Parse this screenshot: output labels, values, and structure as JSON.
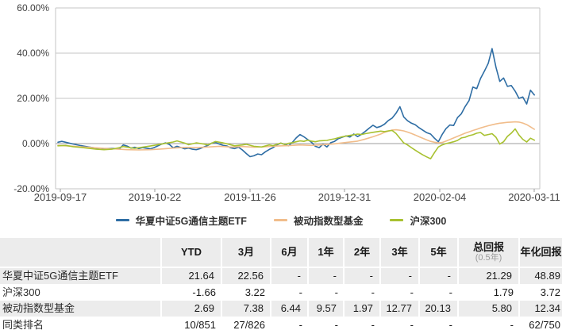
{
  "chart": {
    "y_axis_labels": [
      "60.00%",
      "40.00%",
      "20.00%",
      "0.00%",
      "-20.00%"
    ],
    "x_axis_labels": [
      "2019-09-17",
      "2019-10-22",
      "2019-11-26",
      "2019-12-31",
      "2020-02-04",
      "2020-03-11"
    ]
  },
  "chart_data": {
    "type": "line",
    "title": "",
    "xlabel": "",
    "ylabel": "",
    "y_unit": "%",
    "ylim": [
      -20,
      60
    ],
    "y_ticks": [
      60,
      40,
      20,
      0,
      -20
    ],
    "x_ticks": [
      "2019-09-17",
      "2019-10-22",
      "2019-11-26",
      "2019-12-31",
      "2020-02-04",
      "2020-03-11"
    ],
    "x_tick_day_interval": 25,
    "grid": true,
    "legend_position": "bottom",
    "colors": {
      "grid": "#c6c6c6",
      "zero_line": "#9e9e9e",
      "axis_text": "#404040"
    },
    "series": [
      {
        "name": "华夏中证5G通信主题ETF",
        "color": "#2e6da4",
        "points": [
          [
            0,
            0.6
          ],
          [
            1,
            1.0
          ],
          [
            2,
            0.6
          ],
          [
            4,
            -0.2
          ],
          [
            6,
            -0.9
          ],
          [
            8,
            -1.5
          ],
          [
            10,
            -2.0
          ],
          [
            12,
            -2.2
          ],
          [
            14,
            -2.1
          ],
          [
            16,
            -2.3
          ],
          [
            17,
            -0.6
          ],
          [
            18,
            -1.1
          ],
          [
            19,
            -2.0
          ],
          [
            20,
            -1.6
          ],
          [
            21,
            -2.2
          ],
          [
            22,
            -1.8
          ],
          [
            24,
            -2.3
          ],
          [
            25,
            -1.8
          ],
          [
            27,
            -0.2
          ],
          [
            28,
            0.3
          ],
          [
            29,
            -0.4
          ],
          [
            30,
            -1.9
          ],
          [
            31,
            -1.2
          ],
          [
            33,
            -2.3
          ],
          [
            34,
            -2.0
          ],
          [
            35,
            -2.5
          ],
          [
            36,
            -2.7
          ],
          [
            37,
            -2.2
          ],
          [
            38,
            -1.5
          ],
          [
            39,
            -0.8
          ],
          [
            40,
            0.2
          ],
          [
            41,
            0.5
          ],
          [
            42,
            -0.2
          ],
          [
            43,
            -0.8
          ],
          [
            44,
            -1.1
          ],
          [
            45,
            -1.9
          ],
          [
            46,
            -2.2
          ],
          [
            47,
            -1.6
          ],
          [
            48,
            -2.8
          ],
          [
            49,
            -4.4
          ],
          [
            50,
            -5.8
          ],
          [
            51,
            -5.4
          ],
          [
            52,
            -4.6
          ],
          [
            53,
            -4.9
          ],
          [
            54,
            -3.6
          ],
          [
            55,
            -2.6
          ],
          [
            56,
            -1.8
          ],
          [
            57,
            -0.6
          ],
          [
            58,
            0.2
          ],
          [
            59,
            -0.4
          ],
          [
            60,
            -1.0
          ],
          [
            61,
            0.5
          ],
          [
            62,
            2.5
          ],
          [
            63,
            4.0
          ],
          [
            64,
            3.0
          ],
          [
            65,
            1.8
          ],
          [
            66,
            0.6
          ],
          [
            67,
            -1.2
          ],
          [
            68,
            -1.8
          ],
          [
            69,
            -0.2
          ],
          [
            70,
            -1.5
          ],
          [
            71,
            0.4
          ],
          [
            72,
            1.0
          ],
          [
            73,
            2.2
          ],
          [
            74,
            2.8
          ],
          [
            75,
            3.4
          ],
          [
            76,
            2.9
          ],
          [
            77,
            4.2
          ],
          [
            78,
            3.1
          ],
          [
            79,
            4.1
          ],
          [
            80,
            5.4
          ],
          [
            81,
            6.8
          ],
          [
            82,
            8.1
          ],
          [
            83,
            7.1
          ],
          [
            84,
            7.6
          ],
          [
            85,
            8.6
          ],
          [
            86,
            10.2
          ],
          [
            87,
            11.3
          ],
          [
            88,
            13.4
          ],
          [
            89,
            16.3
          ],
          [
            90,
            11.8
          ],
          [
            91,
            10.1
          ],
          [
            92,
            9.0
          ],
          [
            93,
            8.3
          ],
          [
            94,
            7.0
          ],
          [
            95,
            5.9
          ],
          [
            96,
            4.8
          ],
          [
            97,
            4.2
          ],
          [
            98,
            2.4
          ],
          [
            99,
            0.8
          ],
          [
            100,
            4.0
          ],
          [
            101,
            6.6
          ],
          [
            102,
            8.2
          ],
          [
            103,
            8.0
          ],
          [
            104,
            11.5
          ],
          [
            105,
            13.2
          ],
          [
            106,
            16.4
          ],
          [
            107,
            19.0
          ],
          [
            108,
            25.0
          ],
          [
            109,
            24.3
          ],
          [
            110,
            28.8
          ],
          [
            111,
            32.0
          ],
          [
            112,
            35.5
          ],
          [
            113,
            42.0
          ],
          [
            114,
            33.8
          ],
          [
            115,
            27.5
          ],
          [
            116,
            29.0
          ],
          [
            117,
            25.3
          ],
          [
            118,
            25.7
          ],
          [
            119,
            23.2
          ],
          [
            120,
            20.0
          ],
          [
            121,
            20.6
          ],
          [
            122,
            17.5
          ],
          [
            123,
            23.6
          ],
          [
            124,
            21.5
          ]
        ]
      },
      {
        "name": "被动指数型基金",
        "color": "#f1bd8b",
        "points": [
          [
            0,
            -0.8
          ],
          [
            3,
            -1.1
          ],
          [
            6,
            -1.4
          ],
          [
            9,
            -1.8
          ],
          [
            12,
            -2.1
          ],
          [
            15,
            -2.4
          ],
          [
            18,
            -2.7
          ],
          [
            21,
            -2.8
          ],
          [
            24,
            -2.7
          ],
          [
            27,
            -2.4
          ],
          [
            30,
            -2.0
          ],
          [
            33,
            -1.7
          ],
          [
            36,
            -1.8
          ],
          [
            39,
            -1.5
          ],
          [
            42,
            -1.2
          ],
          [
            45,
            -1.5
          ],
          [
            48,
            -1.3
          ],
          [
            51,
            -1.6
          ],
          [
            54,
            -1.4
          ],
          [
            57,
            -1.1
          ],
          [
            60,
            -0.9
          ],
          [
            63,
            -0.6
          ],
          [
            66,
            -0.8
          ],
          [
            69,
            -0.5
          ],
          [
            72,
            -0.1
          ],
          [
            75,
            0.5
          ],
          [
            78,
            1.1
          ],
          [
            80,
            2.0
          ],
          [
            82,
            3.0
          ],
          [
            84,
            4.2
          ],
          [
            85,
            5.0
          ],
          [
            86,
            5.5
          ],
          [
            87,
            6.0
          ],
          [
            88,
            6.1
          ],
          [
            89,
            5.9
          ],
          [
            90,
            5.6
          ],
          [
            91,
            5.1
          ],
          [
            92,
            4.5
          ],
          [
            93,
            3.8
          ],
          [
            94,
            3.0
          ],
          [
            95,
            2.3
          ],
          [
            96,
            1.6
          ],
          [
            97,
            1.0
          ],
          [
            98,
            0.6
          ],
          [
            99,
            0.3
          ],
          [
            100,
            0.5
          ],
          [
            101,
            1.1
          ],
          [
            102,
            1.8
          ],
          [
            103,
            2.5
          ],
          [
            104,
            3.2
          ],
          [
            105,
            3.9
          ],
          [
            106,
            4.6
          ],
          [
            107,
            5.2
          ],
          [
            108,
            5.8
          ],
          [
            109,
            6.3
          ],
          [
            110,
            6.9
          ],
          [
            111,
            7.4
          ],
          [
            112,
            7.9
          ],
          [
            113,
            8.3
          ],
          [
            114,
            8.7
          ],
          [
            115,
            9.0
          ],
          [
            116,
            9.2
          ],
          [
            117,
            9.4
          ],
          [
            118,
            9.5
          ],
          [
            119,
            9.6
          ],
          [
            120,
            9.5
          ],
          [
            121,
            9.1
          ],
          [
            122,
            8.4
          ],
          [
            123,
            7.4
          ],
          [
            124,
            6.3
          ]
        ]
      },
      {
        "name": "沪深300",
        "color": "#a8c130",
        "points": [
          [
            0,
            -1.0
          ],
          [
            2,
            -0.8
          ],
          [
            4,
            -1.4
          ],
          [
            6,
            -1.7
          ],
          [
            8,
            -2.1
          ],
          [
            10,
            -2.5
          ],
          [
            12,
            -2.7
          ],
          [
            14,
            -2.5
          ],
          [
            16,
            -1.8
          ],
          [
            17,
            -1.3
          ],
          [
            19,
            -1.9
          ],
          [
            20,
            -2.1
          ],
          [
            22,
            -1.6
          ],
          [
            24,
            -1.1
          ],
          [
            26,
            -0.5
          ],
          [
            28,
            0.1
          ],
          [
            30,
            0.7
          ],
          [
            31,
            1.2
          ],
          [
            33,
            0.2
          ],
          [
            34,
            -0.5
          ],
          [
            36,
            0.3
          ],
          [
            38,
            -0.2
          ],
          [
            39,
            -0.6
          ],
          [
            41,
            0.9
          ],
          [
            43,
            0.3
          ],
          [
            44,
            -0.1
          ],
          [
            46,
            -1.0
          ],
          [
            48,
            -0.6
          ],
          [
            49,
            -0.3
          ],
          [
            51,
            -1.2
          ],
          [
            53,
            -1.5
          ],
          [
            55,
            -0.6
          ],
          [
            56,
            -0.9
          ],
          [
            57,
            -0.3
          ],
          [
            58,
            0.2
          ],
          [
            59,
            -0.4
          ],
          [
            60,
            0.1
          ],
          [
            61,
            0.4
          ],
          [
            62,
            0.8
          ],
          [
            63,
            1.2
          ],
          [
            64,
            1.0
          ],
          [
            65,
            1.5
          ],
          [
            66,
            1.1
          ],
          [
            67,
            0.8
          ],
          [
            68,
            1.2
          ],
          [
            70,
            1.4
          ],
          [
            71,
            1.8
          ],
          [
            72,
            2.1
          ],
          [
            73,
            2.6
          ],
          [
            74,
            3.0
          ],
          [
            75,
            3.3
          ],
          [
            76,
            3.6
          ],
          [
            77,
            3.9
          ],
          [
            78,
            4.2
          ],
          [
            79,
            4.0
          ],
          [
            80,
            4.4
          ],
          [
            82,
            5.0
          ],
          [
            84,
            5.5
          ],
          [
            85,
            5.3
          ],
          [
            86,
            5.6
          ],
          [
            87,
            5.8
          ],
          [
            88,
            4.5
          ],
          [
            89,
            2.4
          ],
          [
            90,
            0.3
          ],
          [
            91,
            -0.6
          ],
          [
            92,
            -1.8
          ],
          [
            93,
            -2.9
          ],
          [
            94,
            -4.0
          ],
          [
            95,
            -5.0
          ],
          [
            96,
            -5.9
          ],
          [
            97,
            -6.7
          ],
          [
            98,
            -4.0
          ],
          [
            99,
            -1.5
          ],
          [
            100,
            -0.6
          ],
          [
            101,
            0.0
          ],
          [
            102,
            0.4
          ],
          [
            103,
            0.8
          ],
          [
            104,
            1.4
          ],
          [
            105,
            2.5
          ],
          [
            106,
            2.8
          ],
          [
            107,
            3.5
          ],
          [
            108,
            3.9
          ],
          [
            109,
            4.6
          ],
          [
            110,
            4.9
          ],
          [
            111,
            3.6
          ],
          [
            112,
            4.0
          ],
          [
            113,
            4.4
          ],
          [
            114,
            2.8
          ],
          [
            115,
            -0.2
          ],
          [
            116,
            0.8
          ],
          [
            117,
            3.2
          ],
          [
            118,
            4.6
          ],
          [
            119,
            6.5
          ],
          [
            120,
            3.8
          ],
          [
            121,
            1.9
          ],
          [
            122,
            0.7
          ],
          [
            123,
            2.4
          ],
          [
            124,
            1.5
          ]
        ]
      }
    ]
  },
  "table": {
    "columns": [
      {
        "label": ""
      },
      {
        "label": "YTD"
      },
      {
        "label": "3月"
      },
      {
        "label": "6月"
      },
      {
        "label": "1年"
      },
      {
        "label": "2年"
      },
      {
        "label": "3年"
      },
      {
        "label": "5年"
      },
      {
        "label": "总回报",
        "sub": "(0.5年)"
      },
      {
        "label": "年化回报"
      }
    ],
    "rows": [
      {
        "name": "华夏中证5G通信主题ETF",
        "values": [
          "21.64",
          "22.56",
          "-",
          "-",
          "-",
          "-",
          "-",
          "21.29",
          "48.89"
        ]
      },
      {
        "name": "沪深300",
        "values": [
          "-1.66",
          "3.22",
          "-",
          "-",
          "-",
          "-",
          "-",
          "1.79",
          "3.72"
        ]
      },
      {
        "name": "被动指数型基金",
        "values": [
          "2.69",
          "7.38",
          "6.44",
          "9.57",
          "1.97",
          "12.77",
          "20.13",
          "5.80",
          "12.34"
        ]
      },
      {
        "name": "同类排名",
        "values": [
          "10/851",
          "27/826",
          "-",
          "-",
          "-",
          "-",
          "-",
          "-",
          "62/750"
        ]
      }
    ]
  }
}
